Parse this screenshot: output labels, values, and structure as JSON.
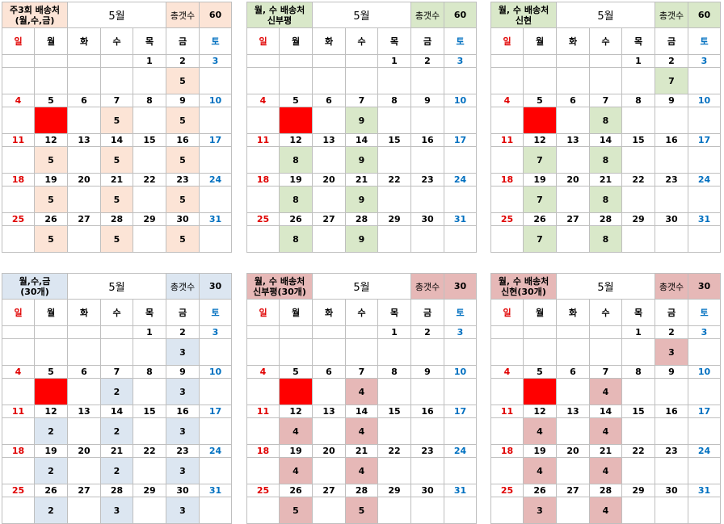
{
  "calendars": [
    {
      "title": [
        "주3회 배송처",
        "(월,수,금)"
      ],
      "month": "5월",
      "total_label": "총갯수",
      "total": "60",
      "color": "#fce4d6",
      "dow": [
        "일",
        "월",
        "화",
        "수",
        "목",
        "금",
        "토"
      ],
      "weeks": [
        {
          "dates": [
            "",
            "",
            "",
            "",
            "1",
            "2",
            "3"
          ],
          "values": [
            "",
            "",
            "",
            "",
            "",
            "5",
            ""
          ]
        },
        {
          "dates": [
            "4",
            "5",
            "6",
            "7",
            "8",
            "9",
            "10"
          ],
          "values": [
            "",
            "",
            "",
            "5",
            "",
            "5",
            ""
          ]
        },
        {
          "dates": [
            "11",
            "12",
            "13",
            "14",
            "15",
            "16",
            "17"
          ],
          "values": [
            "",
            "5",
            "",
            "5",
            "",
            "5",
            ""
          ]
        },
        {
          "dates": [
            "18",
            "19",
            "20",
            "21",
            "22",
            "23",
            "24"
          ],
          "values": [
            "",
            "5",
            "",
            "5",
            "",
            "5",
            ""
          ]
        },
        {
          "dates": [
            "25",
            "26",
            "27",
            "28",
            "29",
            "30",
            "31"
          ],
          "values": [
            "",
            "5",
            "",
            "5",
            "",
            "5",
            ""
          ]
        }
      ]
    },
    {
      "title": [
        "월, 수 배송처",
        "신부평"
      ],
      "month": "5월",
      "total_label": "총갯수",
      "total": "60",
      "color": "#d9e8c9",
      "dow": [
        "일",
        "월",
        "화",
        "수",
        "목",
        "금",
        "토"
      ],
      "weeks": [
        {
          "dates": [
            "",
            "",
            "",
            "",
            "1",
            "2",
            "3"
          ],
          "values": [
            "",
            "",
            "",
            "",
            "",
            "",
            ""
          ]
        },
        {
          "dates": [
            "4",
            "5",
            "6",
            "7",
            "8",
            "9",
            "10"
          ],
          "values": [
            "",
            "",
            "",
            "9",
            "",
            "",
            ""
          ]
        },
        {
          "dates": [
            "11",
            "12",
            "13",
            "14",
            "15",
            "16",
            "17"
          ],
          "values": [
            "",
            "8",
            "",
            "9",
            "",
            "",
            ""
          ]
        },
        {
          "dates": [
            "18",
            "19",
            "20",
            "21",
            "22",
            "23",
            "24"
          ],
          "values": [
            "",
            "8",
            "",
            "9",
            "",
            "",
            ""
          ]
        },
        {
          "dates": [
            "25",
            "26",
            "27",
            "28",
            "29",
            "30",
            "31"
          ],
          "values": [
            "",
            "8",
            "",
            "9",
            "",
            "",
            ""
          ]
        }
      ]
    },
    {
      "title": [
        "월, 수 배송처",
        "신현"
      ],
      "month": "5월",
      "total_label": "총갯수",
      "total": "60",
      "color": "#d9e8c9",
      "dow": [
        "일",
        "월",
        "화",
        "수",
        "목",
        "금",
        "토"
      ],
      "weeks": [
        {
          "dates": [
            "",
            "",
            "",
            "",
            "1",
            "2",
            "3"
          ],
          "values": [
            "",
            "",
            "",
            "",
            "",
            "7",
            ""
          ]
        },
        {
          "dates": [
            "4",
            "5",
            "6",
            "7",
            "8",
            "9",
            "10"
          ],
          "values": [
            "",
            "",
            "",
            "8",
            "",
            "",
            ""
          ]
        },
        {
          "dates": [
            "11",
            "12",
            "13",
            "14",
            "15",
            "16",
            "17"
          ],
          "values": [
            "",
            "7",
            "",
            "8",
            "",
            "",
            ""
          ]
        },
        {
          "dates": [
            "18",
            "19",
            "20",
            "21",
            "22",
            "23",
            "24"
          ],
          "values": [
            "",
            "7",
            "",
            "8",
            "",
            "",
            ""
          ]
        },
        {
          "dates": [
            "25",
            "26",
            "27",
            "28",
            "29",
            "30",
            "31"
          ],
          "values": [
            "",
            "7",
            "",
            "8",
            "",
            "",
            ""
          ]
        }
      ]
    },
    {
      "title": [
        "월,수,금",
        "(30개)"
      ],
      "month": "5월",
      "total_label": "총갯수",
      "total": "30",
      "color": "#dce6f1",
      "dow": [
        "일",
        "월",
        "화",
        "수",
        "목",
        "금",
        "토"
      ],
      "weeks": [
        {
          "dates": [
            "",
            "",
            "",
            "",
            "1",
            "2",
            "3"
          ],
          "values": [
            "",
            "",
            "",
            "",
            "",
            "3",
            ""
          ]
        },
        {
          "dates": [
            "4",
            "5",
            "6",
            "7",
            "8",
            "9",
            "10"
          ],
          "values": [
            "",
            "",
            "",
            "2",
            "",
            "3",
            ""
          ]
        },
        {
          "dates": [
            "11",
            "12",
            "13",
            "14",
            "15",
            "16",
            "17"
          ],
          "values": [
            "",
            "2",
            "",
            "2",
            "",
            "3",
            ""
          ]
        },
        {
          "dates": [
            "18",
            "19",
            "20",
            "21",
            "22",
            "23",
            "24"
          ],
          "values": [
            "",
            "2",
            "",
            "2",
            "",
            "3",
            ""
          ]
        },
        {
          "dates": [
            "25",
            "26",
            "27",
            "28",
            "29",
            "30",
            "31"
          ],
          "values": [
            "",
            "2",
            "",
            "3",
            "",
            "3",
            ""
          ]
        }
      ]
    },
    {
      "title": [
        "월, 수 배송처",
        "신부평(30개)"
      ],
      "month": "5월",
      "total_label": "총갯수",
      "total": "30",
      "color": "#e6b8b7",
      "dow": [
        "일",
        "월",
        "화",
        "수",
        "목",
        "금",
        "토"
      ],
      "weeks": [
        {
          "dates": [
            "",
            "",
            "",
            "",
            "1",
            "2",
            "3"
          ],
          "values": [
            "",
            "",
            "",
            "",
            "",
            "",
            ""
          ]
        },
        {
          "dates": [
            "4",
            "5",
            "6",
            "7",
            "8",
            "9",
            "10"
          ],
          "values": [
            "",
            "",
            "",
            "4",
            "",
            "",
            ""
          ]
        },
        {
          "dates": [
            "11",
            "12",
            "13",
            "14",
            "15",
            "16",
            "17"
          ],
          "values": [
            "",
            "4",
            "",
            "4",
            "",
            "",
            ""
          ]
        },
        {
          "dates": [
            "18",
            "19",
            "20",
            "21",
            "22",
            "23",
            "24"
          ],
          "values": [
            "",
            "4",
            "",
            "4",
            "",
            "",
            ""
          ]
        },
        {
          "dates": [
            "25",
            "26",
            "27",
            "28",
            "29",
            "30",
            "31"
          ],
          "values": [
            "",
            "5",
            "",
            "5",
            "",
            "",
            ""
          ]
        }
      ]
    },
    {
      "title": [
        "월, 수 배송처",
        "신현(30개)"
      ],
      "month": "5월",
      "total_label": "총갯수",
      "total": "30",
      "color": "#e6b8b7",
      "dow": [
        "일",
        "월",
        "화",
        "수",
        "목",
        "금",
        "토"
      ],
      "weeks": [
        {
          "dates": [
            "",
            "",
            "",
            "",
            "1",
            "2",
            "3"
          ],
          "values": [
            "",
            "",
            "",
            "",
            "",
            "3",
            ""
          ]
        },
        {
          "dates": [
            "4",
            "5",
            "6",
            "7",
            "8",
            "9",
            "10"
          ],
          "values": [
            "",
            "",
            "",
            "4",
            "",
            "",
            ""
          ]
        },
        {
          "dates": [
            "11",
            "12",
            "13",
            "14",
            "15",
            "16",
            "17"
          ],
          "values": [
            "",
            "4",
            "",
            "4",
            "",
            "",
            ""
          ]
        },
        {
          "dates": [
            "18",
            "19",
            "20",
            "21",
            "22",
            "23",
            "24"
          ],
          "values": [
            "",
            "4",
            "",
            "4",
            "",
            "",
            ""
          ]
        },
        {
          "dates": [
            "25",
            "26",
            "27",
            "28",
            "29",
            "30",
            "31"
          ],
          "values": [
            "",
            "3",
            "",
            "4",
            "",
            "",
            ""
          ]
        }
      ]
    }
  ],
  "holiday_color": "#ff0000"
}
